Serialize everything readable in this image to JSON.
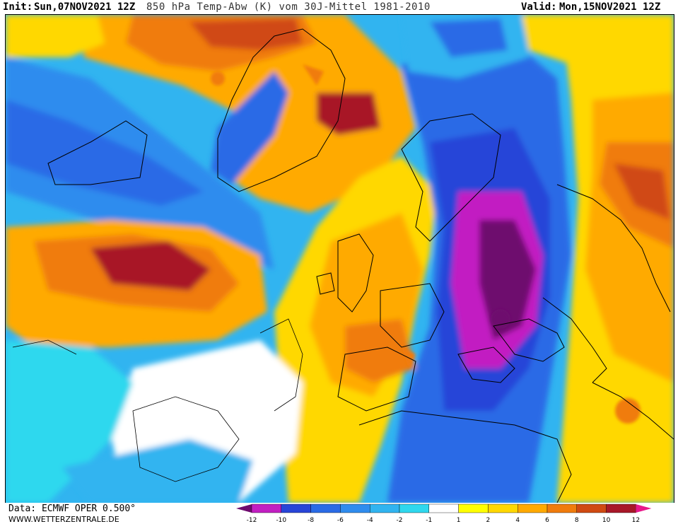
{
  "header": {
    "init_label": "Init:",
    "init_value": "Sun,07NOV2021 12Z",
    "description": "850 hPa Temp-Abw (K) vom 30J-Mittel 1981-2010",
    "valid_label": "Valid:",
    "valid_value": "Mon,15NOV2021 12Z"
  },
  "footer": {
    "data_source": "Data: ECMWF OPER 0.500°",
    "website": "WWW.WETTERZENTRALE.DE"
  },
  "legend": {
    "ticks": [
      "-12",
      "-10",
      "-8",
      "-6",
      "-4",
      "-2",
      "-1",
      "1",
      "2",
      "4",
      "6",
      "8",
      "10",
      "12"
    ],
    "colors": [
      "#6e0a6e",
      "#c21fc2",
      "#2845d8",
      "#2a6be6",
      "#2f8cee",
      "#31b4f0",
      "#2fd8ee",
      "#ffffff",
      "#ffff00",
      "#ffd800",
      "#ffaa00",
      "#f07c0c",
      "#d04a12",
      "#a81828",
      "#e8188a"
    ]
  },
  "map": {
    "variable": "850 hPa temperature anomaly",
    "units": "K",
    "palette": {
      "deep_purple": "#6e0a6e",
      "magenta": "#c21fc2",
      "dark_blue": "#2845d8",
      "blue": "#2a6be6",
      "mid_blue": "#2f8cee",
      "light_blue": "#31b4f0",
      "cyan": "#2fd8ee",
      "white": "#ffffff",
      "yellow": "#ffff00",
      "gold": "#ffd800",
      "orange": "#ffaa00",
      "dark_orange": "#f07c0c",
      "red_orange": "#d04a12",
      "dark_red": "#a81828"
    }
  }
}
